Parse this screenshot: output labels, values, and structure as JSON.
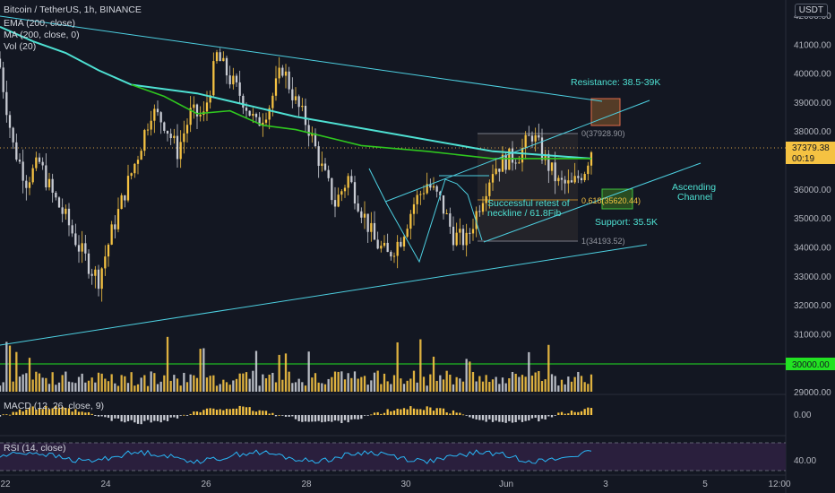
{
  "header": {
    "symbol_title": "Bitcoin / TetherUS, 1h, BINANCE",
    "ema_label": "EMA (200, close)",
    "ma_label": "MA (200, close, 0)",
    "vol_label": "Vol (20)",
    "macd_label": "MACD (12, 26, close, 9)",
    "rsi_label": "RSI (14, close)",
    "unit": "USDT"
  },
  "price_axis": {
    "ticks": [
      "42000.00",
      "41000.00",
      "40000.00",
      "39000.00",
      "38000.00",
      "37000.00",
      "36000.00",
      "35000.00",
      "34000.00",
      "33000.00",
      "32000.00",
      "31000.00",
      "30000.00",
      "29000.00"
    ],
    "current_price": "37379.38",
    "countdown": "00:19",
    "level_label": "30000.00"
  },
  "macd_axis": {
    "ticks": [
      "0.00"
    ]
  },
  "rsi_axis": {
    "ticks": [
      "40.00"
    ]
  },
  "time_axis": {
    "ticks": [
      "22",
      "24",
      "26",
      "28",
      "30",
      "Jun",
      "3",
      "5",
      "12:00"
    ]
  },
  "annotations": {
    "resistance": "Resistance: 38.5-39K",
    "support": "Support: 35.5K",
    "channel": "Ascending\nChannel",
    "retest": "Successful retest of\nneckline / 61.8Fib",
    "fib_0": "0(37928.90)",
    "fib_618": "0.618(35620.44)",
    "fib_1": "1(34193.52)"
  },
  "colors": {
    "background": "#131722",
    "up": "#f5c242",
    "down": "#c9ccd4",
    "ema": "#4ee0d2",
    "ma": "#2fc71f",
    "trendline": "#4dd0e1",
    "level_30k": "#22e222",
    "resistance_box": "#6b4a2a",
    "support_box": "#2f5a22"
  },
  "chart_data": {
    "type": "candlestick",
    "symbol": "Bitcoin / TetherUS",
    "interval": "1h",
    "exchange": "BINANCE",
    "ylim": [
      28900,
      42300
    ],
    "current_price": 37379.38,
    "x_tick_labels": [
      "22",
      "24",
      "26",
      "28",
      "30",
      "Jun",
      "3",
      "5",
      "12:00"
    ],
    "close_path": [
      [
        0,
        40200
      ],
      [
        4,
        37500
      ],
      [
        8,
        36300
      ],
      [
        12,
        36900
      ],
      [
        16,
        35800
      ],
      [
        20,
        35000
      ],
      [
        24,
        34000
      ],
      [
        28,
        33200
      ],
      [
        30,
        32900
      ],
      [
        34,
        34500
      ],
      [
        38,
        35900
      ],
      [
        42,
        37200
      ],
      [
        46,
        38700
      ],
      [
        50,
        38300
      ],
      [
        54,
        37300
      ],
      [
        58,
        38600
      ],
      [
        62,
        38500
      ],
      [
        66,
        40600
      ],
      [
        70,
        39800
      ],
      [
        74,
        39100
      ],
      [
        78,
        38200
      ],
      [
        82,
        38900
      ],
      [
        86,
        40200
      ],
      [
        90,
        39000
      ],
      [
        94,
        38100
      ],
      [
        98,
        36700
      ],
      [
        102,
        35500
      ],
      [
        106,
        36400
      ],
      [
        110,
        35300
      ],
      [
        114,
        34200
      ],
      [
        118,
        33700
      ],
      [
        122,
        34300
      ],
      [
        126,
        35500
      ],
      [
        130,
        36200
      ],
      [
        134,
        35600
      ],
      [
        138,
        34400
      ],
      [
        142,
        34200
      ],
      [
        146,
        35500
      ],
      [
        150,
        36700
      ],
      [
        154,
        37000
      ],
      [
        158,
        37200
      ],
      [
        162,
        37900
      ],
      [
        166,
        37000
      ],
      [
        170,
        36200
      ],
      [
        174,
        36100
      ],
      [
        178,
        36700
      ],
      [
        180,
        37380
      ]
    ],
    "ema200": [
      [
        0,
        41600
      ],
      [
        10,
        41100
      ],
      [
        20,
        40700
      ],
      [
        30,
        40100
      ],
      [
        40,
        39600
      ],
      [
        60,
        39300
      ],
      [
        90,
        38500
      ],
      [
        120,
        37900
      ],
      [
        150,
        37300
      ],
      [
        180,
        37050
      ]
    ],
    "ma200": [
      [
        40,
        39600
      ],
      [
        50,
        39200
      ],
      [
        60,
        38600
      ],
      [
        70,
        38700
      ],
      [
        80,
        38200
      ],
      [
        90,
        38050
      ],
      [
        110,
        37500
      ],
      [
        130,
        37300
      ],
      [
        150,
        37050
      ],
      [
        180,
        37050
      ]
    ],
    "levels": [
      {
        "name": "Resistance: 38.5-39K",
        "value": 38750,
        "from": 38500,
        "to": 39000
      },
      {
        "name": "Support: 35.5K",
        "value": 35500,
        "from": 35250,
        "to": 35800
      },
      {
        "name": "30000.00",
        "value": 30000
      }
    ],
    "fibonacci": [
      {
        "level": "0",
        "price": 37928.9
      },
      {
        "level": "0.618",
        "price": 35620.44
      },
      {
        "level": "1",
        "price": 34193.52
      }
    ],
    "macd_ylim": [
      -1,
      1
    ],
    "rsi_ylim": [
      20,
      80
    ],
    "rsi_level": 40
  }
}
